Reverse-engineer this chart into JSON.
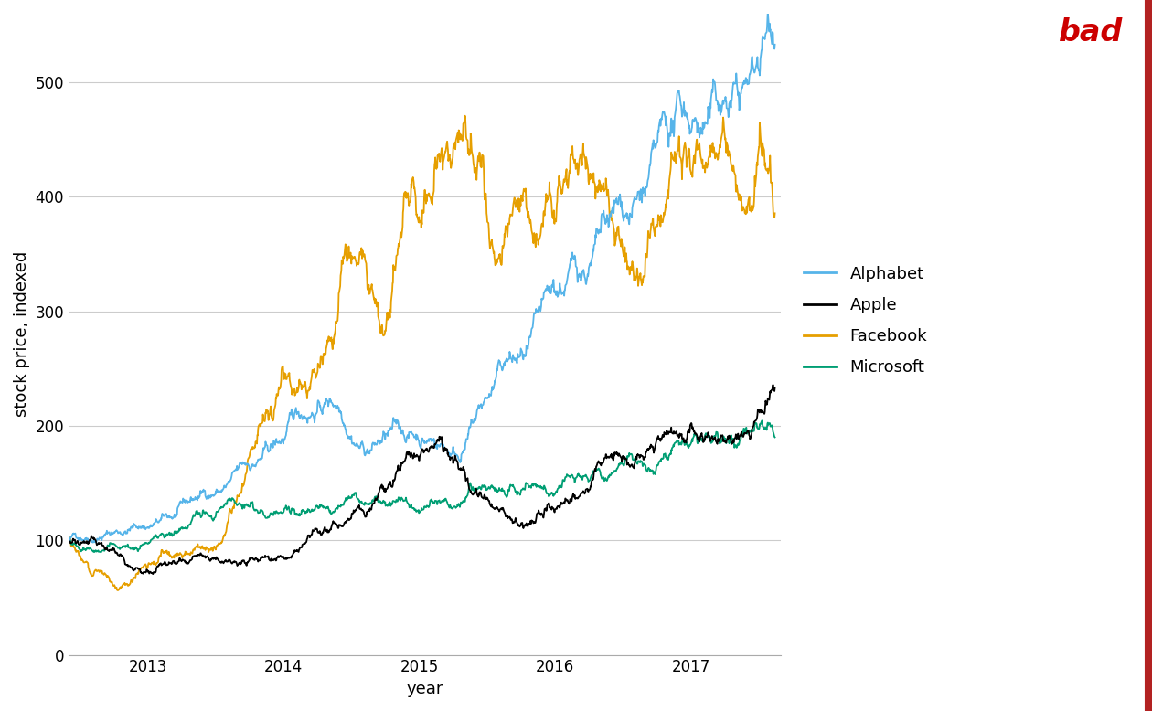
{
  "title": "",
  "xlabel": "year",
  "ylabel": "stock price, indexed",
  "colors": {
    "Alphabet": "#56B4E9",
    "Apple": "#000000",
    "Facebook": "#E69F00",
    "Microsoft": "#009E73"
  },
  "legend_labels": [
    "Alphabet",
    "Apple",
    "Facebook",
    "Microsoft"
  ],
  "ylim": [
    0,
    560
  ],
  "yticks": [
    0,
    100,
    200,
    300,
    400,
    500
  ],
  "bad_label_color": "#CC0000",
  "bad_label_text": "bad",
  "background_color": "#ffffff",
  "grid_color": "#cccccc",
  "line_width": 1.3,
  "seed": 42
}
